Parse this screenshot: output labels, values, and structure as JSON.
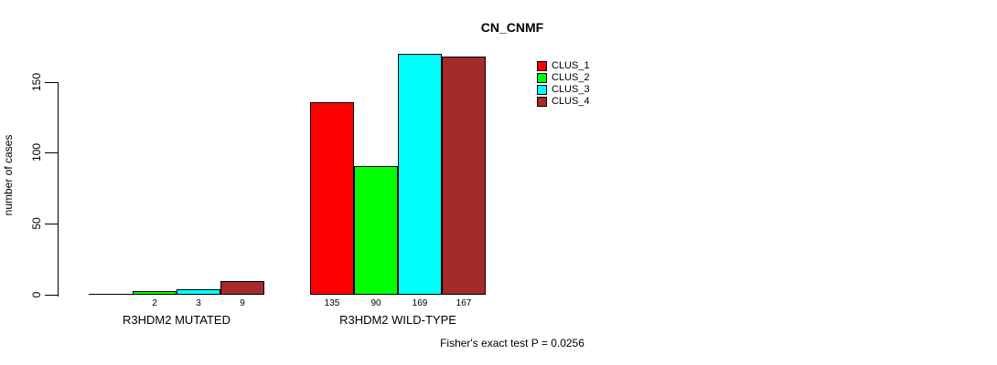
{
  "title": "CN_CNMF",
  "y_axis": {
    "label": "number of cases",
    "ticks": [
      "0",
      "50",
      "100",
      "150"
    ]
  },
  "footer": "Fisher's exact test P = 0.0256",
  "legend": {
    "items": [
      {
        "label": "CLUS_1",
        "color": "#FF0000"
      },
      {
        "label": "CLUS_2",
        "color": "#00FF00"
      },
      {
        "label": "CLUS_3",
        "color": "#00FFFF"
      },
      {
        "label": "CLUS_4",
        "color": "#A52A2A"
      }
    ]
  },
  "chart_data": {
    "type": "bar",
    "title": "CN_CNMF",
    "xlabel": "",
    "ylabel": "number of cases",
    "ylim": [
      0,
      175
    ],
    "yticks": [
      0,
      50,
      100,
      150
    ],
    "grid": false,
    "legend_position": "top-right",
    "series": [
      "CLUS_1",
      "CLUS_2",
      "CLUS_3",
      "CLUS_4"
    ],
    "series_colors": [
      "#FF0000",
      "#00FF00",
      "#00FFFF",
      "#A52A2A"
    ],
    "groups": [
      {
        "label": "R3HDM2 MUTATED",
        "values": [
          0,
          2,
          3,
          9
        ],
        "value_labels": [
          "",
          "2",
          "3",
          "9"
        ]
      },
      {
        "label": "R3HDM2 WILD-TYPE",
        "values": [
          135,
          90,
          169,
          167
        ],
        "value_labels": [
          "135",
          "90",
          "169",
          "167"
        ]
      }
    ],
    "annotation": "Fisher's exact test P = 0.0256"
  }
}
